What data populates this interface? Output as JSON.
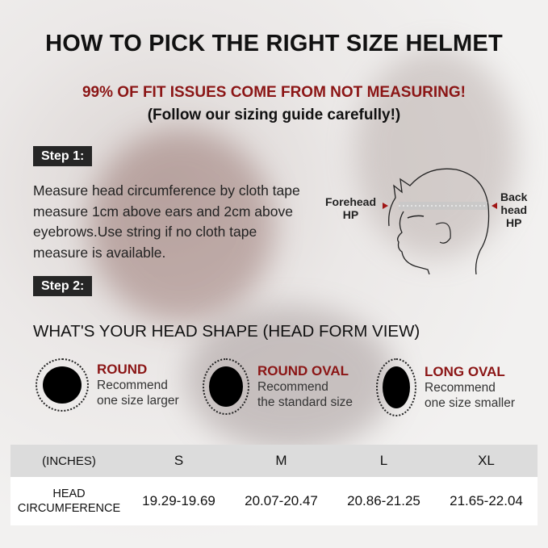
{
  "title": "HOW TO PICK THE RIGHT SIZE HELMET",
  "subtitle": "99% OF FIT ISSUES COME FROM NOT MEASURING!",
  "subtitle2": "(Follow our sizing guide carefully!)",
  "step1": {
    "label": "Step 1:",
    "text": "Measure head circumference by cloth tape measure 1cm above ears and 2cm above eyebrows.Use string if no cloth tape measure is available."
  },
  "diagram": {
    "forehead": "Forehead",
    "forehead2": "HP",
    "back": "Back",
    "back2": "head",
    "back3": "HP"
  },
  "step2": {
    "label": "Step 2:",
    "heading": "WHAT'S YOUR HEAD SHAPE (HEAD FORM VIEW)"
  },
  "shapes": [
    {
      "name": "ROUND",
      "line1": "Recommend",
      "line2": "one size larger"
    },
    {
      "name": "ROUND OVAL",
      "line1": "Recommend",
      "line2": "the standard size"
    },
    {
      "name": "LONG OVAL",
      "line1": "Recommend",
      "line2": "one size smaller"
    }
  ],
  "table": {
    "unit": "(INCHES)",
    "sizes": [
      "S",
      "M",
      "L",
      "XL"
    ],
    "row_label1": "HEAD",
    "row_label2": "CIRCUMFERENCE",
    "values": [
      "19.29-19.69",
      "20.07-20.47",
      "20.86-21.25",
      "21.65-22.04"
    ]
  },
  "colors": {
    "accent": "#8b1515",
    "badge": "#262626"
  }
}
